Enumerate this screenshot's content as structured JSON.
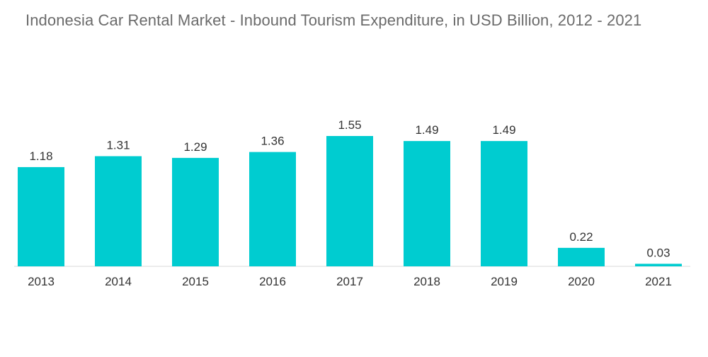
{
  "chart_data": {
    "type": "bar",
    "title": "Indonesia Car Rental Market - Inbound Tourism Expenditure, in USD Billion, 2012 - 2021",
    "xlabel": "",
    "ylabel": "",
    "categories": [
      "2013",
      "2014",
      "2015",
      "2016",
      "2017",
      "2018",
      "2019",
      "2020",
      "2021"
    ],
    "values": [
      1.18,
      1.31,
      1.29,
      1.36,
      1.55,
      1.49,
      1.49,
      0.22,
      0.03
    ],
    "data_labels": [
      "1.18",
      "1.31",
      "1.29",
      "1.36",
      "1.55",
      "1.49",
      "1.49",
      "0.22",
      "0.03"
    ],
    "ylim": [
      0,
      1.55
    ],
    "grid": false,
    "legend": "none",
    "bar_color": "#00CCD0",
    "axis_color": "#d9d9d9"
  }
}
